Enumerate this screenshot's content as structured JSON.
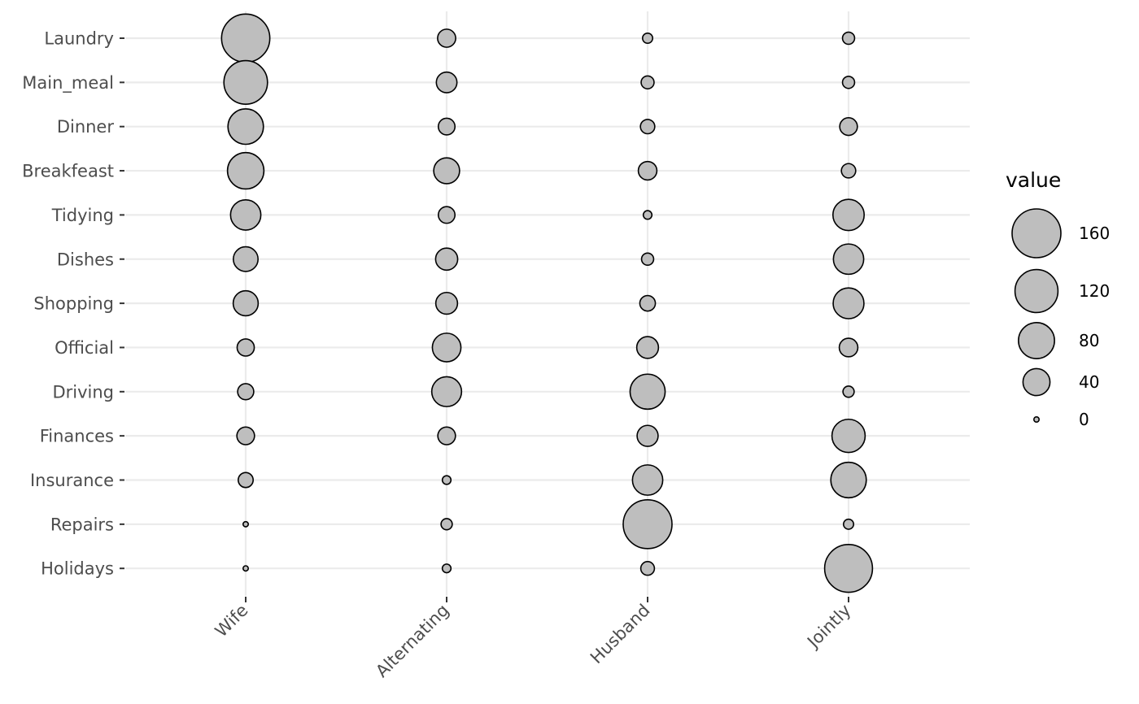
{
  "chart_data": {
    "type": "scatter",
    "x_categories": [
      "Wife",
      "Alternating",
      "Husband",
      "Jointly"
    ],
    "y_categories": [
      "Laundry",
      "Main_meal",
      "Dinner",
      "Breakfeast",
      "Tidying",
      "Dishes",
      "Shopping",
      "Official",
      "Driving",
      "Finances",
      "Insurance",
      "Repairs",
      "Holidays"
    ],
    "values": [
      [
        156,
        14,
        2,
        4
      ],
      [
        124,
        20,
        5,
        4
      ],
      [
        77,
        11,
        7,
        13
      ],
      [
        82,
        36,
        15,
        7
      ],
      [
        53,
        11,
        1,
        57
      ],
      [
        32,
        24,
        4,
        53
      ],
      [
        33,
        23,
        9,
        55
      ],
      [
        12,
        46,
        23,
        15
      ],
      [
        10,
        51,
        75,
        3
      ],
      [
        13,
        13,
        21,
        66
      ],
      [
        8,
        1,
        53,
        77
      ],
      [
        0,
        3,
        160,
        2
      ],
      [
        0,
        1,
        6,
        153
      ]
    ],
    "size_range": [
      0,
      160
    ],
    "legend": {
      "title": "value",
      "position": "right",
      "breaks": [
        160,
        120,
        80,
        40,
        0
      ],
      "labels": [
        "160",
        "120",
        "80",
        "40",
        "0"
      ]
    },
    "colors": {
      "point_fill": "#bebebe",
      "point_stroke": "#000000",
      "grid": "#ebebeb",
      "tick_text": "#4d4d4d"
    },
    "grid": true,
    "x_tick_rotation_deg": 45
  }
}
